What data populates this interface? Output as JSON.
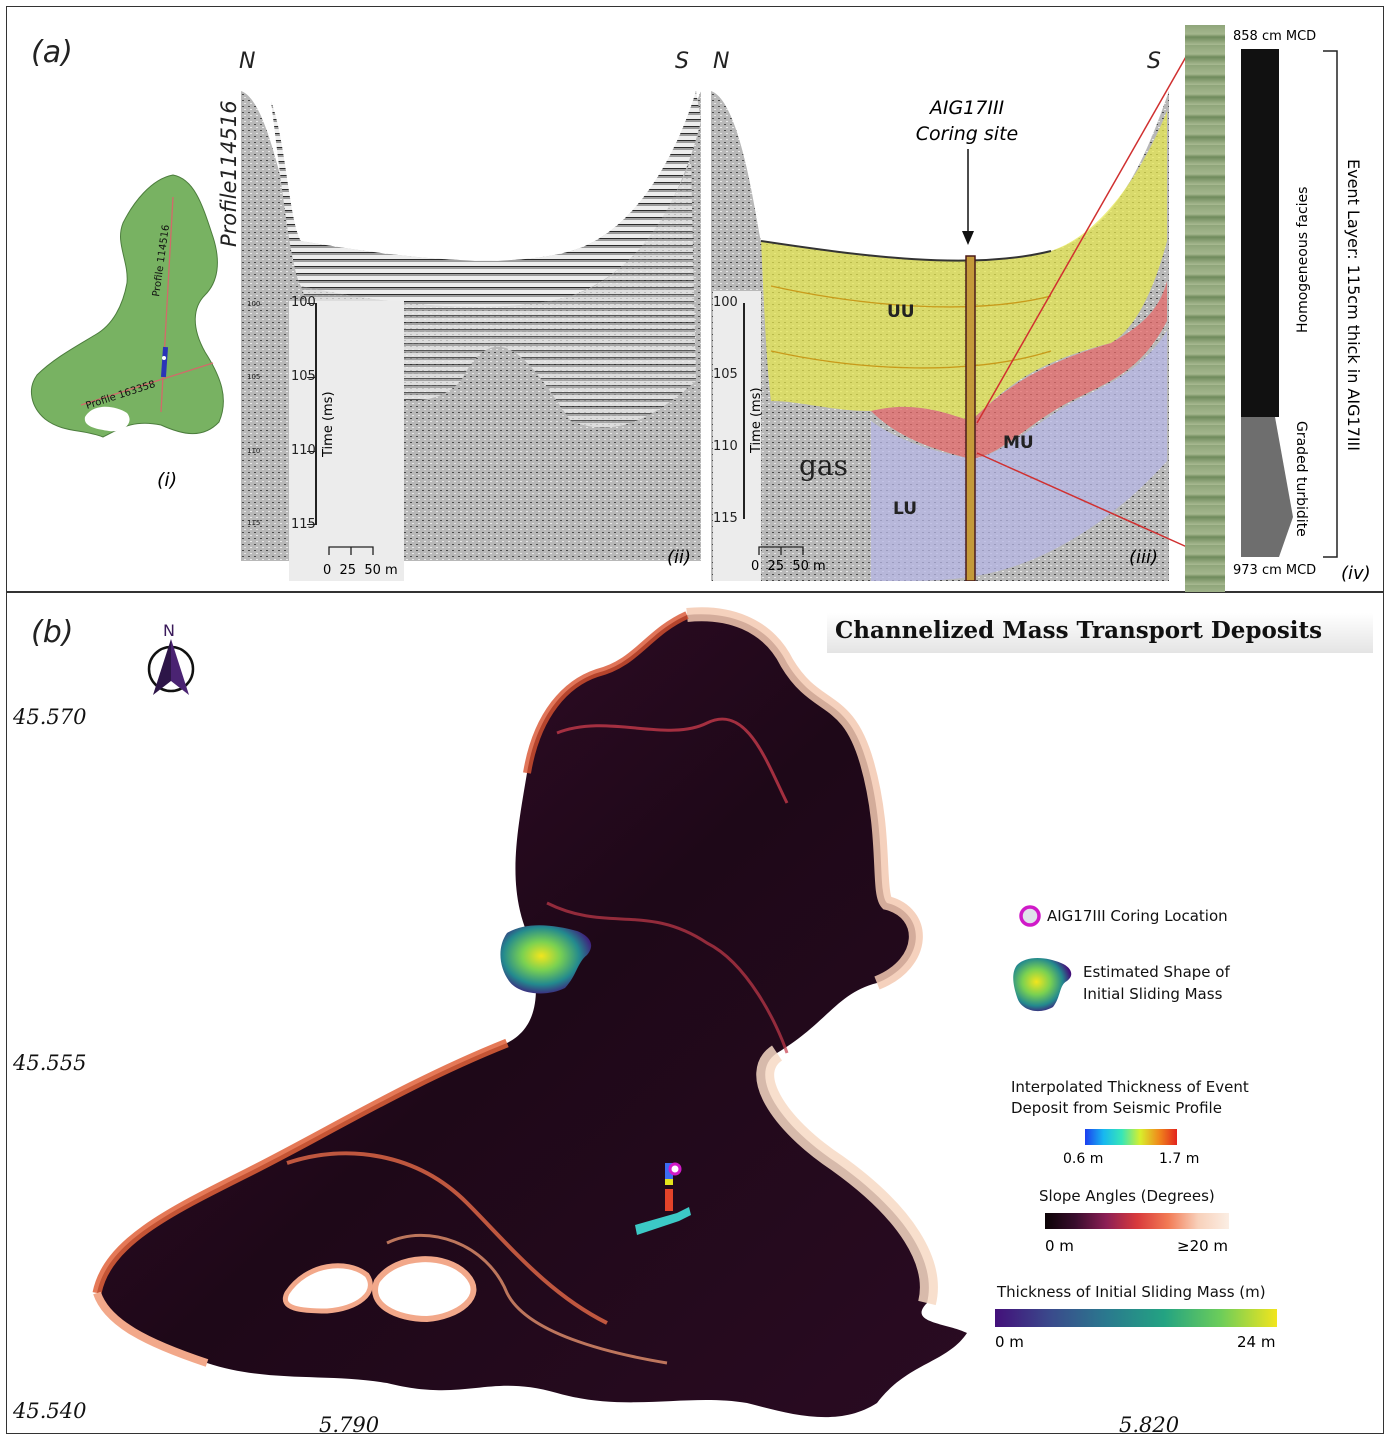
{
  "panel_a": {
    "label": "(a)",
    "map": {
      "label": "(i)",
      "profile_1": "Profile 114516",
      "profile_2": "Profile 163358"
    },
    "seismic_ii": {
      "label": "(ii)",
      "north": "N",
      "south": "S",
      "profile_title": "Profile114516",
      "axis_label": "Time (ms)",
      "ticks": [
        "100",
        "105",
        "110",
        "115"
      ],
      "small_ticks": [
        "100",
        "105",
        "110",
        "115"
      ],
      "scale_label": "0  25  50 m"
    },
    "seismic_iii": {
      "label": "(iii)",
      "north": "N",
      "south": "S",
      "site_line1": "AIG17III",
      "site_line2": "Coring site",
      "axis_label": "Time (ms)",
      "ticks": [
        "100",
        "105",
        "110",
        "115"
      ],
      "scale_label": "0  25  50 m",
      "units": [
        "UU",
        "MU",
        "LU"
      ],
      "gas_label": "gas"
    },
    "core_iv": {
      "label": "(iv)",
      "top_depth": "858 cm MCD",
      "bottom_depth": "973 cm MCD",
      "facies_1": "Homogeneous facies",
      "facies_2": "Graded turbidite",
      "event_layer": "Event Layer: 115cm thick in AIG17III"
    }
  },
  "panel_b": {
    "label": "(b)",
    "title": "Channelized Mass Transport Deposits",
    "north_label": "N",
    "lat_labels": [
      "45.570",
      "45.555",
      "45.540"
    ],
    "lon_labels": [
      "5.790",
      "5.820"
    ],
    "legend": {
      "coring": "AIG17III Coring Location",
      "shape_line1": "Estimated Shape of",
      "shape_line2": "Initial Sliding Mass",
      "thickness_title_1": "Interpolated Thickness of Event",
      "thickness_title_2": "Deposit from Seismic Profile",
      "thickness_min": "0.6 m",
      "thickness_max": "1.7 m",
      "slope_title": "Slope Angles (Degrees)",
      "slope_min": "0 m",
      "slope_max": "≥20 m",
      "mass_title": "Thickness of Initial Sliding Mass (m)",
      "mass_min": "0 m",
      "mass_max": "24 m"
    },
    "colors": {
      "slope_dark": "#1a0716",
      "slope_mid": "#9c2a52",
      "slope_light": "#f7d9c4",
      "mass_low": "#43107a",
      "mass_high": "#f2e51d"
    }
  }
}
